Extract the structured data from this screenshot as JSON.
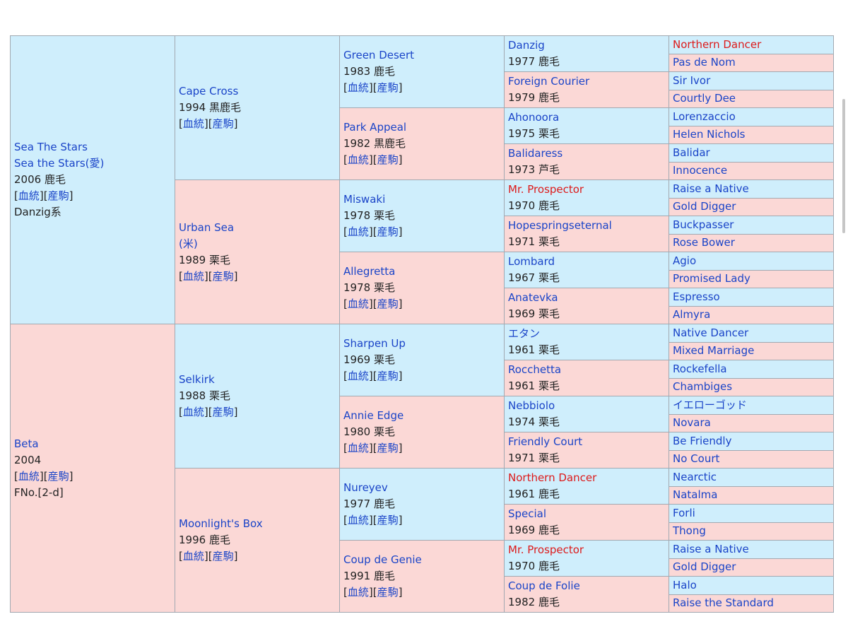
{
  "links": {
    "bloodline": "血統",
    "offspring": "産駒"
  },
  "horse": {
    "name": "Sea The Stars",
    "alt_name": "Sea the Stars(愛)",
    "info": "2006 鹿毛",
    "line": "Danzig系"
  },
  "dam_root": {
    "name": "Beta",
    "info": "2004",
    "family": "FNo.[2-d]"
  },
  "g2": [
    {
      "name": "Cape Cross",
      "info": "1994 黒鹿毛"
    },
    {
      "name": "Urban Sea",
      "name2": "(米)",
      "info": "1989 栗毛"
    },
    {
      "name": "Selkirk",
      "info": "1988 栗毛"
    },
    {
      "name": "Moonlight's Box",
      "info": "1996 鹿毛"
    }
  ],
  "g3": [
    {
      "name": "Green Desert",
      "info": "1983 鹿毛"
    },
    {
      "name": "Park Appeal",
      "info": "1982 黒鹿毛"
    },
    {
      "name": "Miswaki",
      "info": "1978 栗毛"
    },
    {
      "name": "Allegretta",
      "info": "1978 栗毛"
    },
    {
      "name": "Sharpen Up",
      "info": "1969 栗毛"
    },
    {
      "name": "Annie Edge",
      "info": "1980 栗毛"
    },
    {
      "name": "Nureyev",
      "info": "1977 鹿毛"
    },
    {
      "name": "Coup de Genie",
      "info": "1991 鹿毛"
    }
  ],
  "g4": [
    {
      "name": "Danzig",
      "info": "1977 鹿毛"
    },
    {
      "name": "Foreign Courier",
      "info": "1979 鹿毛"
    },
    {
      "name": "Ahonoora",
      "info": "1975 栗毛"
    },
    {
      "name": "Balidaress",
      "info": "1973 芦毛"
    },
    {
      "name": "Mr. Prospector",
      "info": "1970 鹿毛"
    },
    {
      "name": "Hopespringseternal",
      "info": "1971 栗毛"
    },
    {
      "name": "Lombard",
      "info": "1967 栗毛"
    },
    {
      "name": "Anatevka",
      "info": "1969 栗毛"
    },
    {
      "name": "エタン",
      "info": "1961 栗毛"
    },
    {
      "name": "Rocchetta",
      "info": "1961 栗毛"
    },
    {
      "name": "Nebbiolo",
      "info": "1974 栗毛"
    },
    {
      "name": "Friendly Court",
      "info": "1971 栗毛"
    },
    {
      "name": "Northern Dancer",
      "info": "1961 鹿毛"
    },
    {
      "name": "Special",
      "info": "1969 鹿毛"
    },
    {
      "name": "Mr. Prospector",
      "info": "1970 鹿毛"
    },
    {
      "name": "Coup de Folie",
      "info": "1982 鹿毛"
    }
  ],
  "g5": [
    "Northern Dancer",
    "Pas de Nom",
    "Sir Ivor",
    "Courtly Dee",
    "Lorenzaccio",
    "Helen Nichols",
    "Balidar",
    "Innocence",
    "Raise a Native",
    "Gold Digger",
    "Buckpasser",
    "Rose Bower",
    "Agio",
    "Promised Lady",
    "Espresso",
    "Almyra",
    "Native Dancer",
    "Mixed Marriage",
    "Rockefella",
    "Chambiges",
    "イエローゴッド",
    "Novara",
    "Be Friendly",
    "No Court",
    "Nearctic",
    "Natalma",
    "Forli",
    "Thong",
    "Raise a Native",
    "Gold Digger",
    "Halo",
    "Raise the Standard"
  ],
  "colors": {
    "sire_bg": "#cfeefc",
    "dam_bg": "#fbd8d6",
    "link": "#1a44c8",
    "highlight": "#dd1a1a"
  }
}
